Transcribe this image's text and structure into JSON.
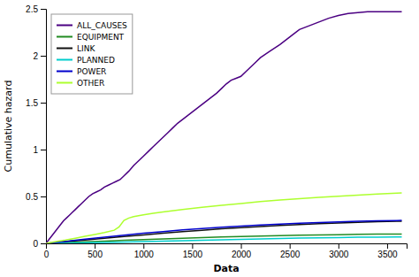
{
  "chart_data": {
    "type": "line",
    "x_label": "Data",
    "y_label": "Cumulative hazard",
    "xlim": [
      0,
      3700
    ],
    "ylim": [
      0,
      2.5
    ],
    "xticks": [
      0,
      500,
      1000,
      1500,
      2000,
      2500,
      3000,
      3500
    ],
    "yticks": [
      0,
      0.5,
      1,
      1.5,
      2,
      2.5
    ],
    "grid": false,
    "legend": "upper-left",
    "series": [
      {
        "name": "ALL_CAUSES",
        "color": "#4B0082",
        "x": [
          0,
          30,
          60,
          90,
          120,
          150,
          180,
          210,
          240,
          270,
          300,
          330,
          360,
          400,
          440,
          480,
          520,
          560,
          600,
          640,
          680,
          720,
          760,
          800,
          850,
          900,
          950,
          1000,
          1050,
          1100,
          1150,
          1200,
          1250,
          1300,
          1350,
          1400,
          1450,
          1500,
          1550,
          1600,
          1650,
          1700,
          1750,
          1800,
          1850,
          1900,
          1950,
          2000,
          2050,
          2100,
          2150,
          2200,
          2300,
          2400,
          2450,
          2500,
          2550,
          2600,
          2700,
          2800,
          2900,
          3000,
          3100,
          3200,
          3300,
          3400,
          3500,
          3600,
          3650
        ],
        "values": [
          0,
          0.04,
          0.08,
          0.12,
          0.16,
          0.2,
          0.24,
          0.27,
          0.3,
          0.33,
          0.36,
          0.39,
          0.42,
          0.46,
          0.5,
          0.53,
          0.55,
          0.57,
          0.6,
          0.62,
          0.64,
          0.66,
          0.68,
          0.72,
          0.77,
          0.83,
          0.88,
          0.93,
          0.98,
          1.03,
          1.08,
          1.13,
          1.18,
          1.23,
          1.28,
          1.32,
          1.36,
          1.4,
          1.44,
          1.48,
          1.52,
          1.56,
          1.6,
          1.65,
          1.7,
          1.74,
          1.76,
          1.78,
          1.83,
          1.88,
          1.93,
          1.98,
          2.05,
          2.12,
          2.16,
          2.2,
          2.24,
          2.28,
          2.32,
          2.36,
          2.4,
          2.43,
          2.45,
          2.46,
          2.47,
          2.47,
          2.47,
          2.47,
          2.47
        ]
      },
      {
        "name": "EQUIPMENT",
        "color": "#228B22",
        "x": [
          0,
          200,
          400,
          600,
          800,
          1000,
          1200,
          1400,
          1600,
          1800,
          2000,
          2200,
          2400,
          2600,
          2800,
          3000,
          3200,
          3400,
          3600,
          3650
        ],
        "values": [
          0,
          0.008,
          0.016,
          0.024,
          0.032,
          0.04,
          0.048,
          0.055,
          0.062,
          0.068,
          0.074,
          0.079,
          0.083,
          0.087,
          0.09,
          0.093,
          0.096,
          0.098,
          0.1,
          0.1
        ]
      },
      {
        "name": "LINK",
        "color": "#111111",
        "x": [
          0,
          200,
          400,
          600,
          800,
          1000,
          1200,
          1400,
          1600,
          1800,
          2000,
          2200,
          2400,
          2600,
          2800,
          3000,
          3200,
          3400,
          3600,
          3650
        ],
        "values": [
          0,
          0.018,
          0.036,
          0.054,
          0.072,
          0.09,
          0.108,
          0.125,
          0.14,
          0.155,
          0.168,
          0.18,
          0.191,
          0.201,
          0.21,
          0.218,
          0.225,
          0.231,
          0.236,
          0.237
        ]
      },
      {
        "name": "PLANNED",
        "color": "#00CDCD",
        "x": [
          0,
          200,
          400,
          600,
          800,
          1000,
          1200,
          1400,
          1600,
          1800,
          2000,
          2200,
          2400,
          2600,
          2800,
          3000,
          3200,
          3400,
          3600,
          3650
        ],
        "values": [
          0,
          0.003,
          0.006,
          0.01,
          0.014,
          0.018,
          0.023,
          0.028,
          0.033,
          0.038,
          0.043,
          0.048,
          0.052,
          0.056,
          0.059,
          0.062,
          0.065,
          0.067,
          0.069,
          0.069
        ]
      },
      {
        "name": "POWER",
        "color": "#0000CC",
        "x": [
          0,
          200,
          400,
          600,
          800,
          1000,
          1200,
          1400,
          1600,
          1800,
          2000,
          2200,
          2400,
          2600,
          2800,
          3000,
          3200,
          3400,
          3600,
          3650
        ],
        "values": [
          0,
          0.022,
          0.044,
          0.066,
          0.088,
          0.108,
          0.126,
          0.143,
          0.158,
          0.172,
          0.184,
          0.195,
          0.205,
          0.214,
          0.222,
          0.229,
          0.235,
          0.24,
          0.244,
          0.245
        ]
      },
      {
        "name": "OTHER",
        "color": "#ADFF2F",
        "x": [
          0,
          100,
          200,
          300,
          400,
          500,
          600,
          700,
          750,
          800,
          850,
          900,
          950,
          1000,
          1100,
          1200,
          1400,
          1600,
          1800,
          2000,
          2200,
          2400,
          2600,
          2800,
          3000,
          3200,
          3400,
          3600,
          3650
        ],
        "values": [
          0,
          0.018,
          0.035,
          0.055,
          0.075,
          0.095,
          0.115,
          0.14,
          0.175,
          0.245,
          0.27,
          0.285,
          0.295,
          0.305,
          0.32,
          0.335,
          0.36,
          0.385,
          0.405,
          0.425,
          0.445,
          0.462,
          0.476,
          0.49,
          0.503,
          0.515,
          0.526,
          0.535,
          0.537
        ]
      }
    ]
  }
}
